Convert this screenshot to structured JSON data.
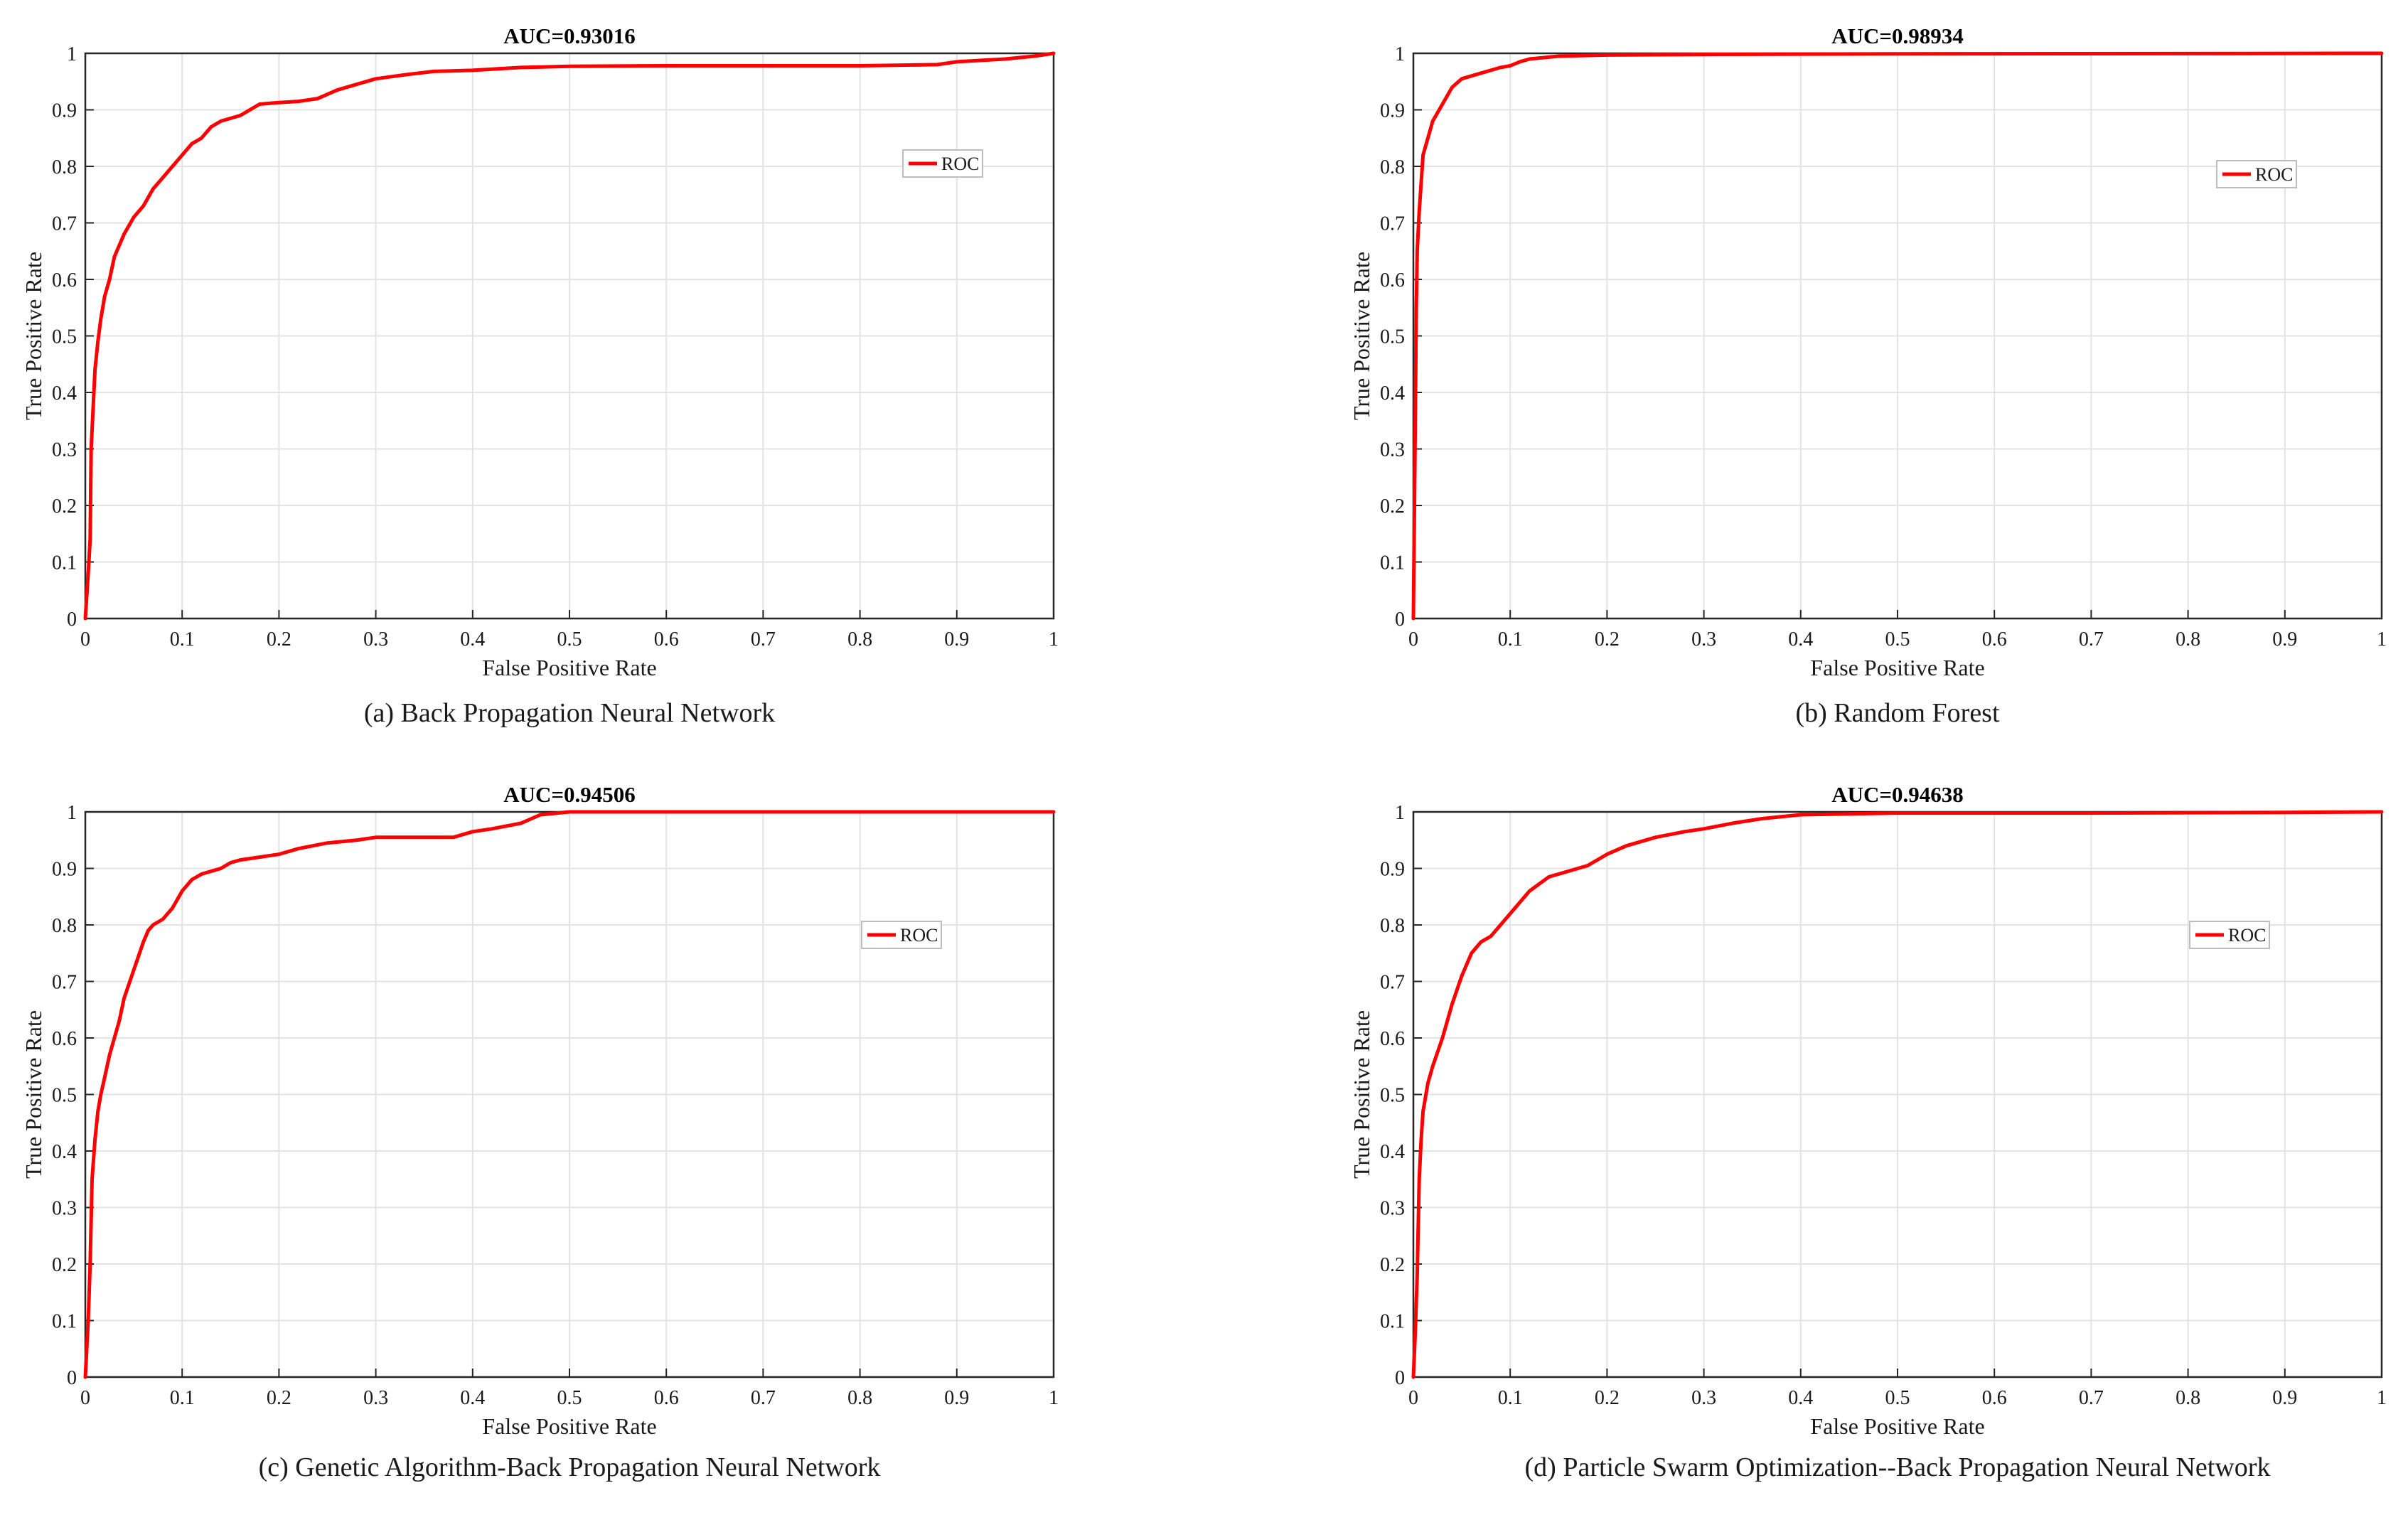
{
  "figure": {
    "background": "#ffffff",
    "curve_color": "#ff0000",
    "grid_color": "#e3e3e3",
    "axis_color": "#262626"
  },
  "chart_data": [
    {
      "type": "line",
      "title": "AUC=0.93016",
      "caption": "(a) Back Propagation Neural Network",
      "xlabel": "False Positive Rate",
      "ylabel": "True Positive Rate",
      "xlim": [
        0,
        1
      ],
      "ylim": [
        0,
        1
      ],
      "xticks": [
        "0",
        "0.1",
        "0.2",
        "0.3",
        "0.4",
        "0.5",
        "0.6",
        "0.7",
        "0.8",
        "0.9",
        "1"
      ],
      "yticks": [
        "0",
        "0.1",
        "0.2",
        "0.3",
        "0.4",
        "0.5",
        "0.6",
        "0.7",
        "0.8",
        "0.9",
        "1"
      ],
      "grid": true,
      "legend": {
        "position": "upper-right",
        "entries": [
          "ROC"
        ]
      },
      "series": [
        {
          "name": "ROC",
          "color": "#ff0000",
          "x": [
            0,
            0.003,
            0.005,
            0.006,
            0.008,
            0.01,
            0.013,
            0.016,
            0.02,
            0.025,
            0.03,
            0.04,
            0.05,
            0.06,
            0.07,
            0.08,
            0.09,
            0.1,
            0.11,
            0.12,
            0.13,
            0.14,
            0.15,
            0.16,
            0.17,
            0.18,
            0.2,
            0.22,
            0.24,
            0.26,
            0.28,
            0.3,
            0.33,
            0.36,
            0.4,
            0.45,
            0.5,
            0.6,
            0.7,
            0.8,
            0.88,
            0.9,
            0.95,
            0.98,
            1
          ],
          "y": [
            0,
            0.08,
            0.14,
            0.3,
            0.37,
            0.44,
            0.49,
            0.53,
            0.57,
            0.6,
            0.64,
            0.68,
            0.71,
            0.73,
            0.76,
            0.78,
            0.8,
            0.82,
            0.84,
            0.85,
            0.87,
            0.88,
            0.885,
            0.89,
            0.9,
            0.91,
            0.913,
            0.915,
            0.92,
            0.935,
            0.945,
            0.955,
            0.962,
            0.968,
            0.97,
            0.975,
            0.977,
            0.978,
            0.978,
            0.978,
            0.98,
            0.985,
            0.99,
            0.995,
            1
          ]
        }
      ]
    },
    {
      "type": "line",
      "title": "AUC=0.98934",
      "caption": "(b) Random Forest",
      "xlabel": "False Positive Rate",
      "ylabel": "True Positive Rate",
      "xlim": [
        0,
        1
      ],
      "ylim": [
        0,
        1
      ],
      "xticks": [
        "0",
        "0.1",
        "0.2",
        "0.3",
        "0.4",
        "0.5",
        "0.6",
        "0.7",
        "0.8",
        "0.9",
        "1"
      ],
      "yticks": [
        "0",
        "0.1",
        "0.2",
        "0.3",
        "0.4",
        "0.5",
        "0.6",
        "0.7",
        "0.8",
        "0.9",
        "1"
      ],
      "grid": true,
      "legend": {
        "position": "upper-right",
        "entries": [
          "ROC"
        ]
      },
      "series": [
        {
          "name": "ROC",
          "color": "#ff0000",
          "x": [
            0,
            0.002,
            0.003,
            0.004,
            0.006,
            0.008,
            0.01,
            0.015,
            0.02,
            0.03,
            0.04,
            0.05,
            0.06,
            0.07,
            0.08,
            0.09,
            0.1,
            0.11,
            0.12,
            0.15,
            0.2,
            0.3,
            0.5,
            1
          ],
          "y": [
            0,
            0.35,
            0.55,
            0.65,
            0.72,
            0.77,
            0.82,
            0.85,
            0.88,
            0.91,
            0.94,
            0.955,
            0.96,
            0.965,
            0.97,
            0.975,
            0.978,
            0.985,
            0.99,
            0.995,
            0.997,
            0.998,
            0.999,
            1
          ]
        }
      ]
    },
    {
      "type": "line",
      "title": "AUC=0.94506",
      "caption": "(c) Genetic Algorithm-Back Propagation Neural Network",
      "xlabel": "False Positive Rate",
      "ylabel": "True Positive Rate",
      "xlim": [
        0,
        1
      ],
      "ylim": [
        0,
        1
      ],
      "xticks": [
        "0",
        "0.1",
        "0.2",
        "0.3",
        "0.4",
        "0.5",
        "0.6",
        "0.7",
        "0.8",
        "0.9",
        "1"
      ],
      "yticks": [
        "0",
        "0.1",
        "0.2",
        "0.3",
        "0.4",
        "0.5",
        "0.6",
        "0.7",
        "0.8",
        "0.9",
        "1"
      ],
      "grid": true,
      "legend": {
        "position": "upper-right",
        "entries": [
          "ROC"
        ]
      },
      "series": [
        {
          "name": "ROC",
          "color": "#ff0000",
          "x": [
            0,
            0.003,
            0.005,
            0.007,
            0.01,
            0.013,
            0.016,
            0.02,
            0.025,
            0.03,
            0.035,
            0.04,
            0.05,
            0.06,
            0.065,
            0.07,
            0.08,
            0.09,
            0.1,
            0.11,
            0.12,
            0.14,
            0.15,
            0.16,
            0.18,
            0.2,
            0.22,
            0.25,
            0.28,
            0.3,
            0.35,
            0.38,
            0.4,
            0.42,
            0.45,
            0.47,
            0.5,
            0.6,
            0.8,
            1
          ],
          "y": [
            0,
            0.1,
            0.2,
            0.35,
            0.42,
            0.47,
            0.5,
            0.53,
            0.57,
            0.6,
            0.63,
            0.67,
            0.72,
            0.77,
            0.79,
            0.8,
            0.81,
            0.83,
            0.86,
            0.88,
            0.89,
            0.9,
            0.91,
            0.915,
            0.92,
            0.925,
            0.935,
            0.945,
            0.95,
            0.955,
            0.955,
            0.955,
            0.965,
            0.97,
            0.98,
            0.995,
            1,
            1,
            1,
            1
          ]
        }
      ]
    },
    {
      "type": "line",
      "title": "AUC=0.94638",
      "caption": "(d) Particle Swarm Optimization--Back Propagation Neural Network",
      "xlabel": "False Positive Rate",
      "ylabel": "True Positive Rate",
      "xlim": [
        0,
        1
      ],
      "ylim": [
        0,
        1
      ],
      "xticks": [
        "0",
        "0.1",
        "0.2",
        "0.3",
        "0.4",
        "0.5",
        "0.6",
        "0.7",
        "0.8",
        "0.9",
        "1"
      ],
      "yticks": [
        "0",
        "0.1",
        "0.2",
        "0.3",
        "0.4",
        "0.5",
        "0.6",
        "0.7",
        "0.8",
        "0.9",
        "1"
      ],
      "grid": true,
      "legend": {
        "position": "upper-right",
        "entries": [
          "ROC"
        ]
      },
      "series": [
        {
          "name": "ROC",
          "color": "#ff0000",
          "x": [
            0,
            0.002,
            0.004,
            0.006,
            0.008,
            0.01,
            0.015,
            0.02,
            0.03,
            0.04,
            0.05,
            0.06,
            0.07,
            0.08,
            0.09,
            0.1,
            0.12,
            0.14,
            0.16,
            0.18,
            0.2,
            0.22,
            0.25,
            0.28,
            0.3,
            0.33,
            0.36,
            0.4,
            0.5,
            0.7,
            0.9,
            1
          ],
          "y": [
            0,
            0.08,
            0.18,
            0.35,
            0.42,
            0.47,
            0.52,
            0.55,
            0.6,
            0.66,
            0.71,
            0.75,
            0.77,
            0.78,
            0.8,
            0.82,
            0.86,
            0.885,
            0.895,
            0.905,
            0.925,
            0.94,
            0.955,
            0.965,
            0.97,
            0.98,
            0.988,
            0.995,
            0.998,
            0.998,
            0.999,
            1
          ]
        }
      ]
    }
  ]
}
